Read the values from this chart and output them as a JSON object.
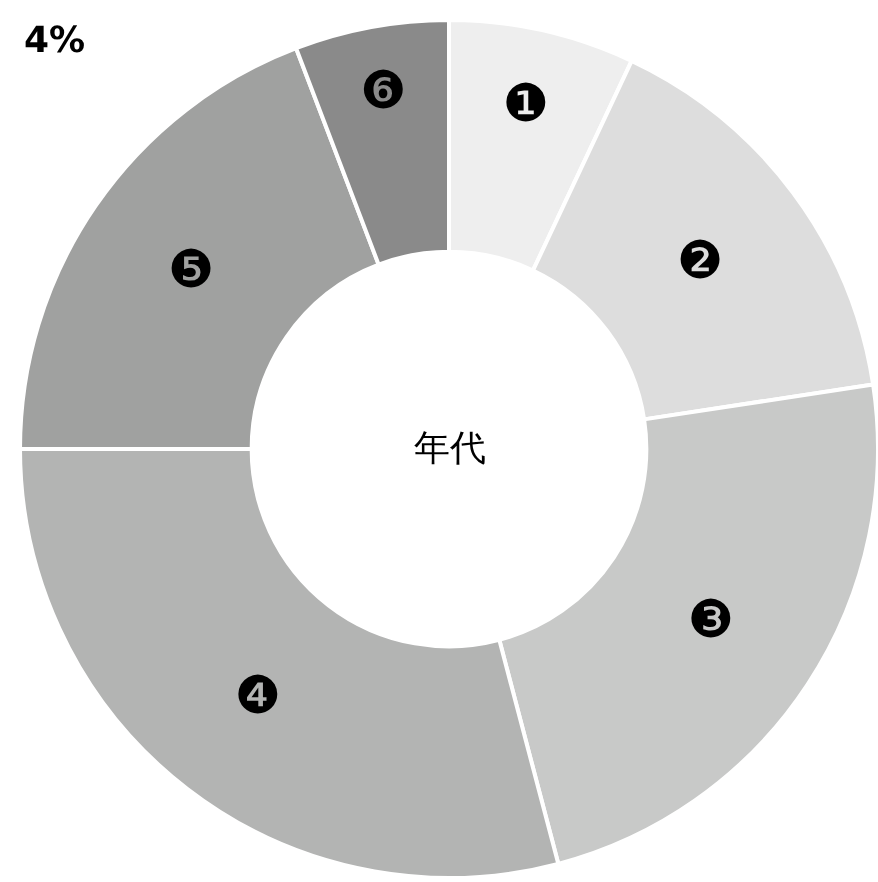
{
  "chart_data": {
    "type": "donut",
    "title": "年代",
    "categories": [
      "❶",
      "❷",
      "❸",
      "❹",
      "❺",
      "❻"
    ],
    "values": [
      7,
      15.6,
      23.3,
      29.1,
      19.2,
      5.8
    ],
    "colors": [
      "#eeeeee",
      "#dddddd",
      "#c8c9c8",
      "#b3b4b3",
      "#a0a1a0",
      "#8a8a8a"
    ],
    "annotations": [
      "4%"
    ]
  }
}
